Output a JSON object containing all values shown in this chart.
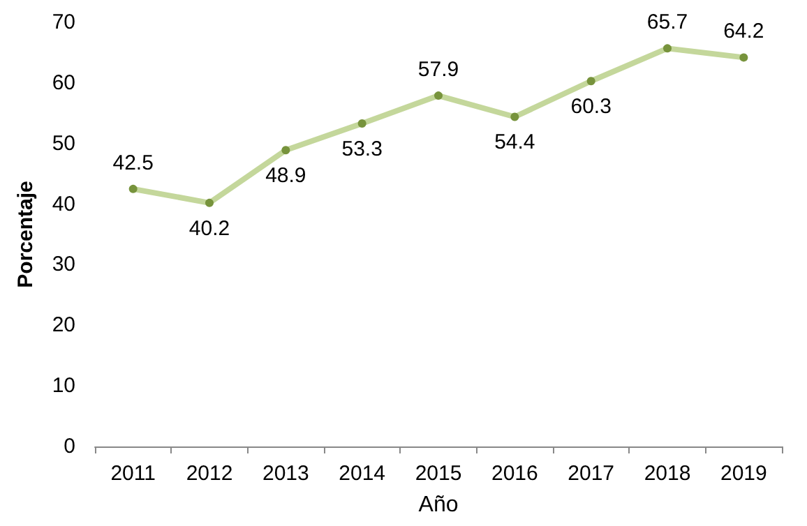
{
  "chart_data": {
    "type": "line",
    "xlabel": "Año",
    "ylabel": "Porcentaje",
    "categories": [
      "2011",
      "2012",
      "2013",
      "2014",
      "2015",
      "2016",
      "2017",
      "2018",
      "2019"
    ],
    "series": [
      {
        "color": "#c4d79b",
        "values": [
          42.5,
          40.2,
          48.9,
          53.3,
          57.9,
          54.4,
          60.3,
          65.7,
          64.2
        ]
      }
    ],
    "ylim": [
      0,
      70
    ],
    "yticks": [
      0,
      10,
      20,
      30,
      40,
      50,
      60,
      70
    ],
    "data_labels": true,
    "marker": "circle"
  }
}
